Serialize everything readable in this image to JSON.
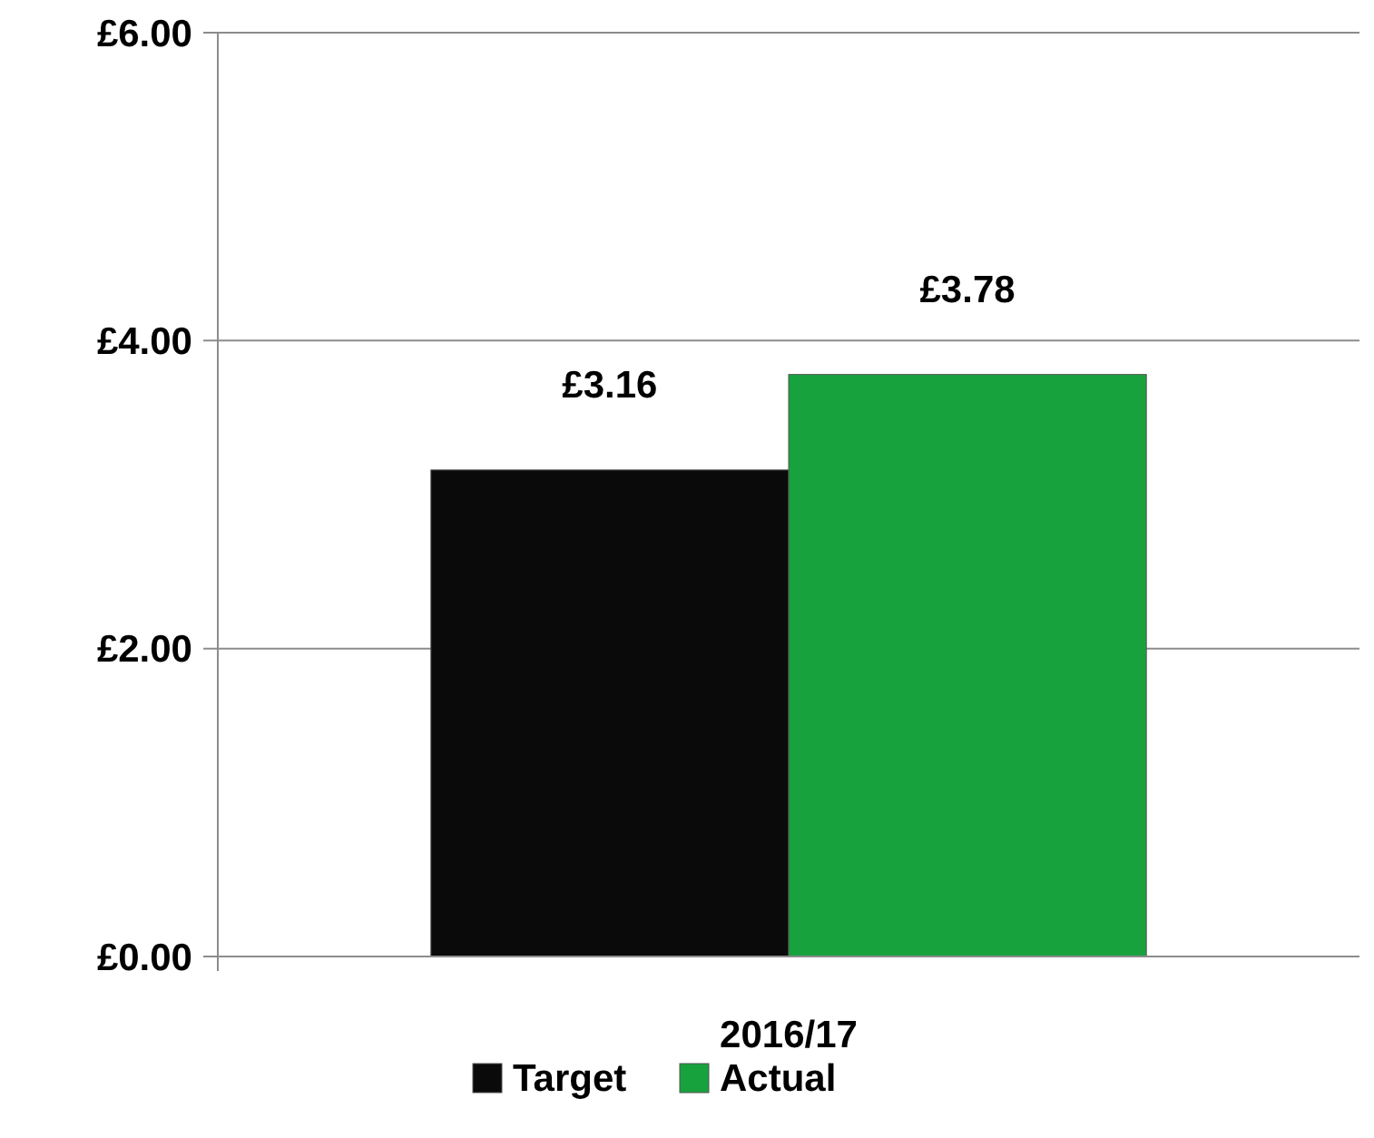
{
  "chart_data": {
    "type": "bar",
    "categories": [
      "2016/17"
    ],
    "series": [
      {
        "name": "Target",
        "color": "#0a0a0a",
        "values": [
          3.16
        ],
        "value_labels": [
          "£3.16"
        ]
      },
      {
        "name": "Actual",
        "color": "#18a23e",
        "values": [
          3.78
        ],
        "value_labels": [
          "£3.78"
        ]
      }
    ],
    "ylim": [
      0,
      6
    ],
    "yticks": [
      {
        "value": 0,
        "label": "£0.00"
      },
      {
        "value": 2,
        "label": "£2.00"
      },
      {
        "value": 4,
        "label": "£4.00"
      },
      {
        "value": 6,
        "label": "£6.00"
      }
    ],
    "grid": "y",
    "legend": "bottom"
  }
}
